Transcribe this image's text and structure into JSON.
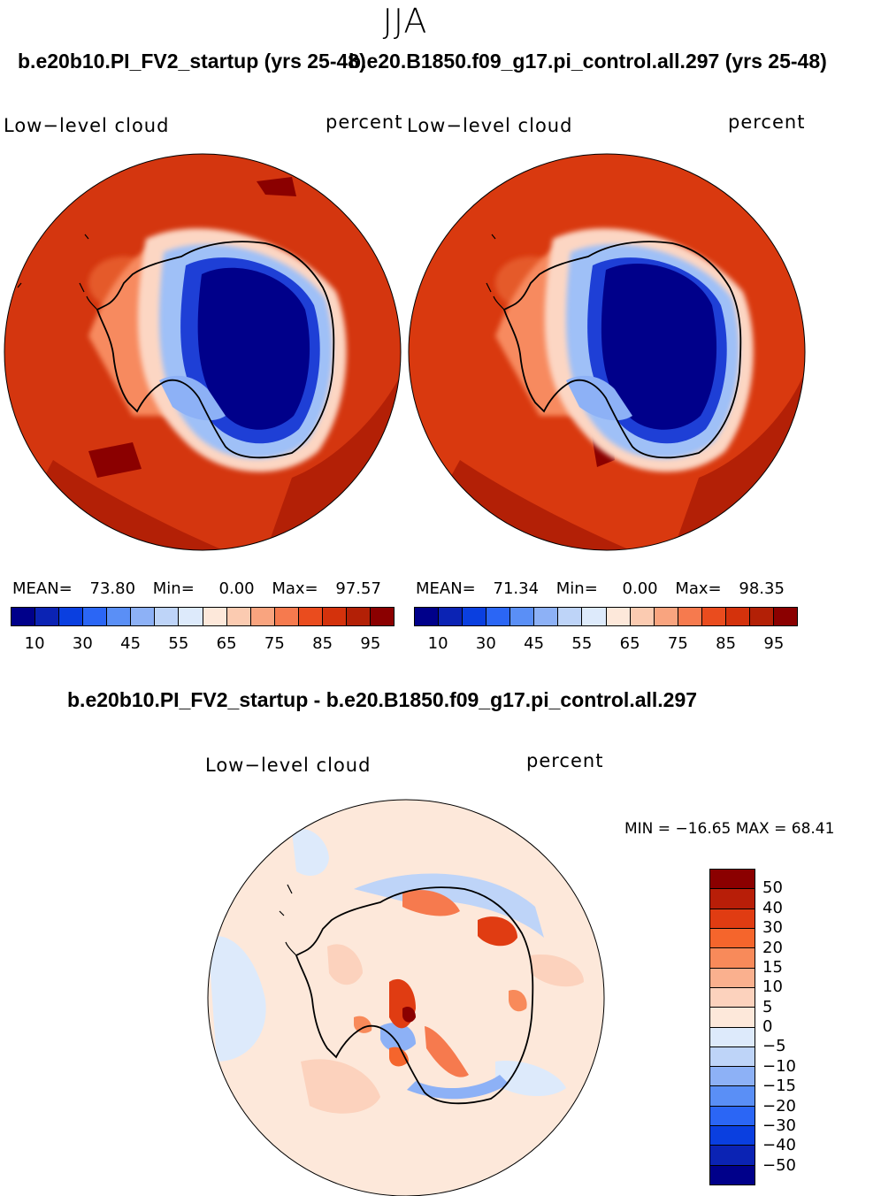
{
  "season": "JJA",
  "cases": {
    "left_title": "b.e20b10.PI_FV2_startup (yrs 25-48)",
    "right_title": "b.e20.B1850.f09_g17.pi_control.all.297 (yrs 25-48)",
    "diff_title": "b.e20b10.PI_FV2_startup - b.e20.B1850.f09_g17.pi_control.all.297"
  },
  "panels": {
    "left": {
      "variable": "Low−level cloud",
      "units": "percent",
      "mean_label": "MEAN=",
      "mean": "73.80",
      "min_label": "Min=",
      "min": "0.00",
      "max_label": "Max=",
      "max": "97.57"
    },
    "right": {
      "variable": "Low−level cloud",
      "units": "percent",
      "mean_label": "MEAN=",
      "mean": "71.34",
      "min_label": "Min=",
      "min": "0.00",
      "max_label": "Max=",
      "max": "98.35"
    },
    "diff": {
      "variable": "Low−level cloud",
      "units": "percent",
      "stats_text": "MIN = −16.65 MAX =   68.41"
    }
  },
  "colorbar_main": {
    "colors": [
      "#00008a",
      "#0b23b4",
      "#0a3fe0",
      "#2b66f5",
      "#5a8ff6",
      "#8db1f6",
      "#bed4f8",
      "#ddeafb",
      "#fde8da",
      "#fbcbb1",
      "#f9a47f",
      "#f67a4e",
      "#ea4c1e",
      "#d4320c",
      "#b32006",
      "#8b0000"
    ],
    "ticks": [
      "10",
      "30",
      "45",
      "55",
      "65",
      "75",
      "85",
      "95"
    ]
  },
  "colorbar_diff": {
    "colors": [
      "#8b0000",
      "#b81e08",
      "#e03c12",
      "#f5652c",
      "#f88a5a",
      "#fab08e",
      "#fcd2bd",
      "#fde8da",
      "#ddeafb",
      "#bed4f8",
      "#8db1f6",
      "#5a8ff6",
      "#2b66f5",
      "#0a3fe0",
      "#0b23b4",
      "#00008a"
    ],
    "ticks": [
      "50",
      "40",
      "30",
      "20",
      "15",
      "10",
      "5",
      "0",
      "−5",
      "−10",
      "−15",
      "−20",
      "−30",
      "−40",
      "−50"
    ]
  },
  "map_colors": {
    "ocean_left": "#d4360f",
    "ocean_right": "#d9390f",
    "deep": "#b32006",
    "maxred": "#8b0000",
    "interior": "#00008a",
    "diff_bg": "#fde8da"
  }
}
